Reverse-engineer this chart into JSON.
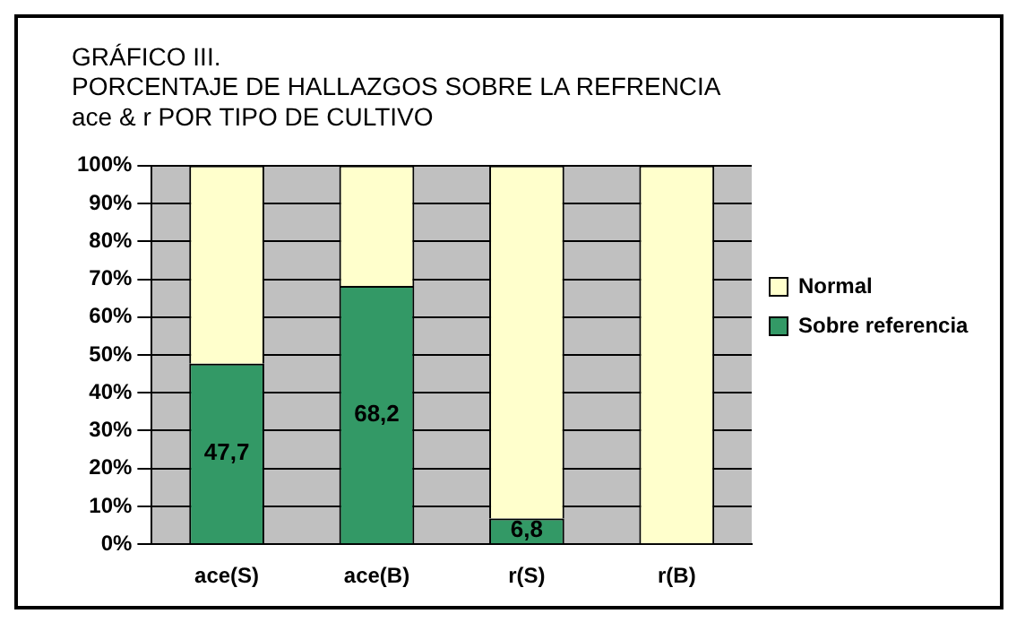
{
  "chart_data": {
    "type": "bar",
    "title": "GRÁFICO III.\nPORCENTAJE DE HALLAZGOS SOBRE LA REFRENCIA\nace & r POR TIPO DE CULTIVO",
    "categories": [
      "ace(S)",
      "ace(B)",
      "r(S)",
      "r(B)"
    ],
    "stacked": true,
    "series": [
      {
        "name": "Sobre referencia",
        "color": "#339966",
        "values": [
          47.7,
          68.2,
          6.8,
          0
        ],
        "value_labels": [
          "47,7",
          "68,2",
          "6,8",
          null
        ]
      },
      {
        "name": "Normal",
        "color": "#ffffcc",
        "values": [
          52.3,
          31.8,
          93.2,
          100
        ]
      }
    ],
    "ylim": [
      0,
      100
    ],
    "yticks": [
      {
        "value": 0,
        "label": "0%"
      },
      {
        "value": 10,
        "label": "10%"
      },
      {
        "value": 20,
        "label": "20%"
      },
      {
        "value": 30,
        "label": "30%"
      },
      {
        "value": 40,
        "label": "40%"
      },
      {
        "value": 50,
        "label": "50%"
      },
      {
        "value": 60,
        "label": "60%"
      },
      {
        "value": 70,
        "label": "70%"
      },
      {
        "value": 80,
        "label": "80%"
      },
      {
        "value": 90,
        "label": "90%"
      },
      {
        "value": 100,
        "label": "100%"
      }
    ],
    "grid": "y",
    "legend": "right"
  }
}
